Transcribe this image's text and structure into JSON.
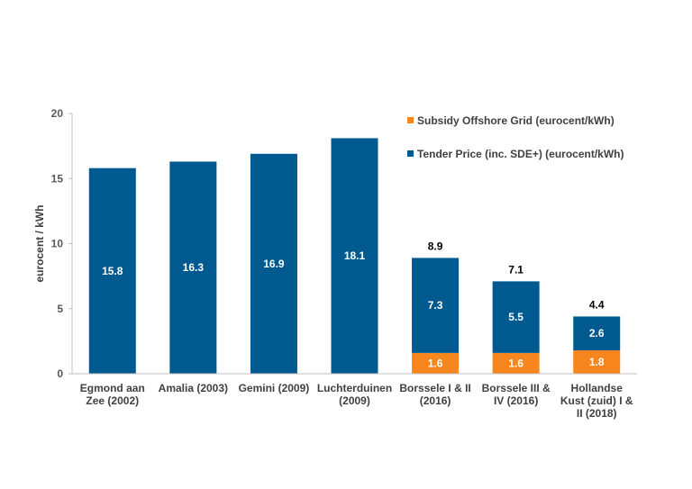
{
  "chart_data": {
    "type": "bar",
    "stacked": true,
    "categories": [
      [
        "Egmond aan",
        "Zee (2002)"
      ],
      [
        "Amalia (2003)"
      ],
      [
        "Gemini (2009)"
      ],
      [
        "Luchterduinen",
        "(2009)"
      ],
      [
        "Borssele I & II",
        "(2016)"
      ],
      [
        "Borssele III &",
        "IV (2016)"
      ],
      [
        "Hollandse",
        "Kust (zuid) I &",
        "II (2018)"
      ]
    ],
    "series": [
      {
        "name": "Subsidy Offshore Grid (eurocent/kWh)",
        "color": "#F7861E",
        "values": [
          0,
          0,
          0,
          0,
          1.6,
          1.6,
          1.8
        ],
        "labels": [
          "",
          "",
          "",
          "",
          "1.6",
          "1.6",
          "1.8"
        ]
      },
      {
        "name": "Tender Price  (inc. SDE+) (eurocent/kWh)",
        "color": "#005A8F",
        "values": [
          15.8,
          16.3,
          16.9,
          18.1,
          7.3,
          5.5,
          2.6
        ],
        "labels": [
          "15.8",
          "16.3",
          "16.9",
          "18.1",
          "7.3",
          "5.5",
          "2.6"
        ]
      }
    ],
    "totals": [
      "",
      "",
      "",
      "",
      "8.9",
      "7.1",
      "4.4"
    ],
    "ylabel": "eurocent / kWh",
    "ylim": [
      0,
      20
    ],
    "yticks": [
      0,
      5,
      10,
      15,
      20
    ],
    "legend": "top-right",
    "grid": false
  }
}
